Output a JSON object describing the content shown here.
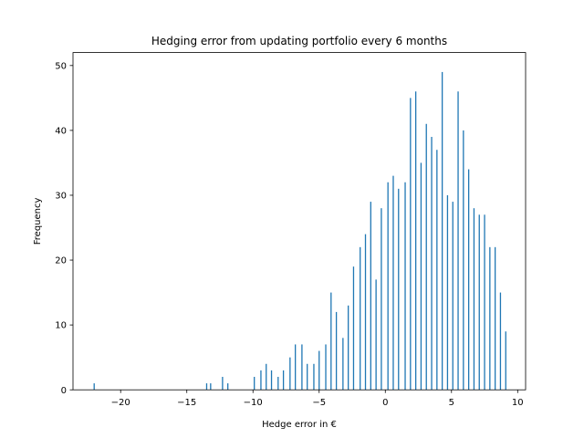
{
  "chart_data": {
    "type": "bar",
    "title": "Hedging error from updating portfolio every 6 months",
    "xlabel": "Hedge error in €",
    "ylabel": "Frequency",
    "xlim": [
      -23.6,
      10.6
    ],
    "ylim": [
      0,
      52
    ],
    "xticks": [
      -20,
      -15,
      -10,
      -5,
      0,
      5,
      10
    ],
    "yticks": [
      0,
      10,
      20,
      30,
      40,
      50
    ],
    "xtick_labels": [
      "−20",
      "−15",
      "−10",
      "−5",
      "0",
      "5",
      "10"
    ],
    "ytick_labels": [
      "0",
      "10",
      "20",
      "30",
      "40",
      "50"
    ],
    "grid": false,
    "bar_color": "#1f77b4",
    "bars": [
      {
        "x": -22.0,
        "y": 1
      },
      {
        "x": -13.5,
        "y": 1
      },
      {
        "x": -13.2,
        "y": 1
      },
      {
        "x": -12.3,
        "y": 2
      },
      {
        "x": -11.9,
        "y": 1
      },
      {
        "x": -9.9,
        "y": 2
      },
      {
        "x": -9.4,
        "y": 3
      },
      {
        "x": -9.0,
        "y": 4
      },
      {
        "x": -8.6,
        "y": 3
      },
      {
        "x": -8.1,
        "y": 2
      },
      {
        "x": -7.7,
        "y": 3
      },
      {
        "x": -7.2,
        "y": 5
      },
      {
        "x": -6.8,
        "y": 7
      },
      {
        "x": -6.3,
        "y": 7
      },
      {
        "x": -5.9,
        "y": 4
      },
      {
        "x": -5.4,
        "y": 4
      },
      {
        "x": -5.0,
        "y": 6
      },
      {
        "x": -4.5,
        "y": 7
      },
      {
        "x": -4.1,
        "y": 15
      },
      {
        "x": -3.7,
        "y": 12
      },
      {
        "x": -3.2,
        "y": 8
      },
      {
        "x": -2.8,
        "y": 13
      },
      {
        "x": -2.4,
        "y": 19
      },
      {
        "x": -1.9,
        "y": 22
      },
      {
        "x": -1.5,
        "y": 24
      },
      {
        "x": -1.1,
        "y": 29
      },
      {
        "x": -0.7,
        "y": 17
      },
      {
        "x": -0.3,
        "y": 28
      },
      {
        "x": 0.2,
        "y": 32
      },
      {
        "x": 0.6,
        "y": 33
      },
      {
        "x": 1.0,
        "y": 31
      },
      {
        "x": 1.5,
        "y": 32
      },
      {
        "x": 1.9,
        "y": 45
      },
      {
        "x": 2.3,
        "y": 46
      },
      {
        "x": 2.7,
        "y": 35
      },
      {
        "x": 3.1,
        "y": 41
      },
      {
        "x": 3.5,
        "y": 39
      },
      {
        "x": 3.9,
        "y": 37
      },
      {
        "x": 4.3,
        "y": 49
      },
      {
        "x": 4.7,
        "y": 30
      },
      {
        "x": 5.1,
        "y": 29
      },
      {
        "x": 5.5,
        "y": 46
      },
      {
        "x": 5.9,
        "y": 40
      },
      {
        "x": 6.3,
        "y": 34
      },
      {
        "x": 6.7,
        "y": 28
      },
      {
        "x": 7.1,
        "y": 27
      },
      {
        "x": 7.5,
        "y": 27
      },
      {
        "x": 7.9,
        "y": 22
      },
      {
        "x": 8.3,
        "y": 22
      },
      {
        "x": 8.7,
        "y": 15
      },
      {
        "x": 9.1,
        "y": 9
      }
    ]
  }
}
